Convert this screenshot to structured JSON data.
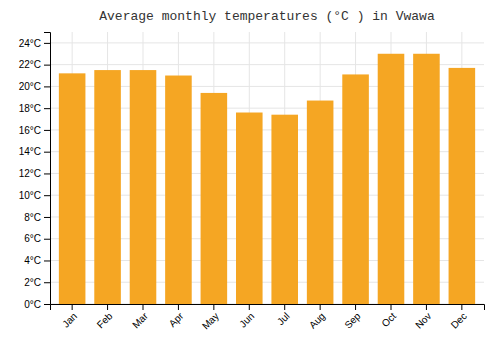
{
  "chart_data": {
    "type": "bar",
    "title": "Average monthly temperatures (°C ) in Vwawa",
    "categories": [
      "Jan",
      "Feb",
      "Mar",
      "Apr",
      "May",
      "Jun",
      "Jul",
      "Aug",
      "Sep",
      "Oct",
      "Nov",
      "Dec"
    ],
    "values": [
      21.2,
      21.5,
      21.5,
      21.0,
      19.4,
      17.6,
      17.4,
      18.7,
      21.1,
      23.0,
      23.0,
      21.7
    ],
    "color": "#F5A623",
    "ylim": [
      0,
      25
    ],
    "yticks": [
      {
        "value": 0,
        "label": "0°C"
      },
      {
        "value": 2,
        "label": "2°C"
      },
      {
        "value": 4,
        "label": "4°C"
      },
      {
        "value": 6,
        "label": "6°C"
      },
      {
        "value": 8,
        "label": "8°C"
      },
      {
        "value": 10,
        "label": "10°C"
      },
      {
        "value": 12,
        "label": "12°C"
      },
      {
        "value": 14,
        "label": "14°C"
      },
      {
        "value": 16,
        "label": "16°C"
      },
      {
        "value": 18,
        "label": "18°C"
      },
      {
        "value": 20,
        "label": "20°C"
      },
      {
        "value": 22,
        "label": "22°C"
      },
      {
        "value": 24,
        "label": "24°C"
      }
    ],
    "grid": true
  }
}
